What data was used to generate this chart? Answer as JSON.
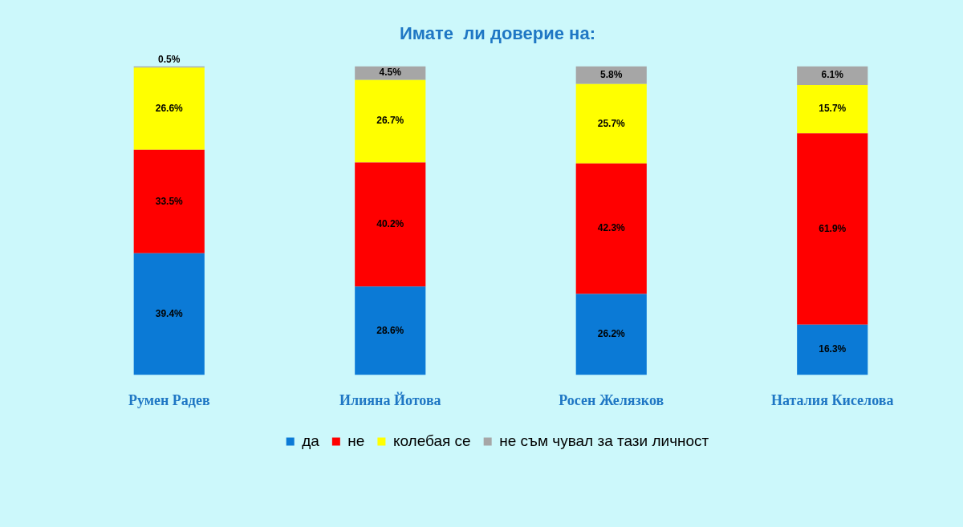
{
  "chart_data": {
    "type": "bar",
    "stacked": true,
    "title": "Имате  ли доверие на:",
    "categories": [
      "Румен Радев",
      "Илияна Йотова",
      "Росен Желязков",
      "Наталия Киселова"
    ],
    "series": [
      {
        "name": "да",
        "color": "#0b7ad6",
        "values": [
          39.4,
          28.6,
          26.2,
          16.3
        ],
        "value_labels": [
          "39.4%",
          "28.6%",
          "26.2%",
          "16.3%"
        ]
      },
      {
        "name": "не",
        "color": "#ff0000",
        "values": [
          33.5,
          40.2,
          42.3,
          61.9
        ],
        "value_labels": [
          "33.5%",
          "40.2%",
          "42.3%",
          "61.9%"
        ]
      },
      {
        "name": "колебая се",
        "color": "#ffff00",
        "values": [
          26.6,
          26.7,
          25.7,
          15.7
        ],
        "value_labels": [
          "26.6%",
          "26.7%",
          "25.7%",
          "15.7%"
        ]
      },
      {
        "name": "не съм чувал за тази личност",
        "color": "#a6a6a6",
        "values": [
          0.5,
          4.5,
          5.8,
          6.1
        ],
        "value_labels": [
          "0.5%",
          "4.5%",
          "5.8%",
          "6.1%"
        ]
      }
    ],
    "tick_labels": "x",
    "legend": "bottom"
  }
}
